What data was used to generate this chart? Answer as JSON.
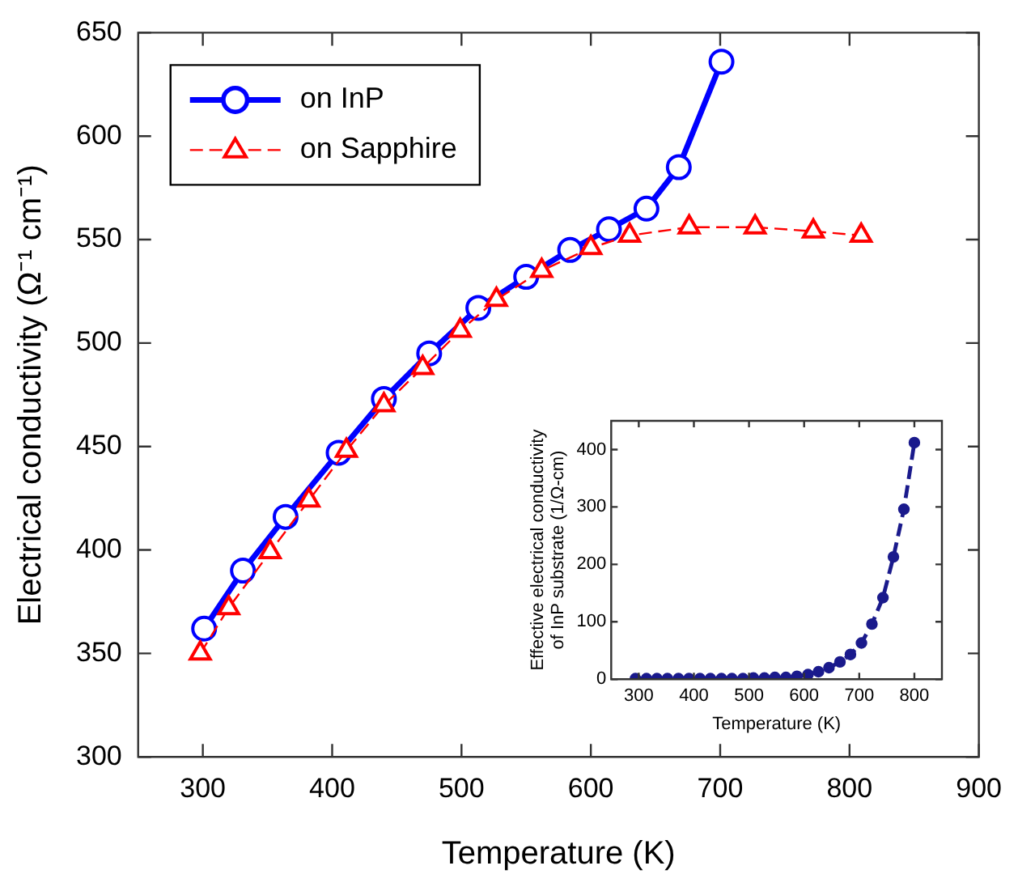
{
  "chart_data": [
    {
      "type": "line",
      "xlabel": "Temperature (K)",
      "ylabel": "Electrical conductivity (Ω⁻¹ cm⁻¹)",
      "xlim": [
        250,
        900
      ],
      "xticks": [
        300,
        400,
        500,
        600,
        700,
        800,
        900
      ],
      "ylim": [
        300,
        650
      ],
      "yticks": [
        300,
        350,
        400,
        450,
        500,
        550,
        600,
        650
      ],
      "legend": "top left",
      "grid": false,
      "series": [
        {
          "name": "on InP",
          "color": "#0000ff",
          "marker": "circle",
          "line_style": "solid",
          "x": [
            301,
            331,
            364,
            405,
            440,
            475,
            513,
            550,
            584,
            614,
            643,
            668,
            701
          ],
          "values": [
            362,
            390,
            416,
            447,
            473,
            495,
            517,
            532,
            545,
            555,
            565,
            585,
            636
          ]
        },
        {
          "name": "on Sapphire",
          "color": "#ff0000",
          "marker": "triangle",
          "line_style": "dashed",
          "x": [
            298,
            320,
            352,
            382,
            411,
            440,
            470,
            499,
            527,
            562,
            600,
            630,
            676,
            727,
            772,
            809
          ],
          "values": [
            350,
            372,
            399,
            424,
            448,
            470,
            488,
            506,
            521,
            535,
            546,
            552,
            556,
            556,
            554,
            552
          ]
        }
      ]
    },
    {
      "type": "line",
      "xlabel": "Temperature (K)",
      "ylabel": "Effective electrical conductivity\nof InP substrate (1/Ω-cm)",
      "xlim": [
        250,
        850
      ],
      "xticks": [
        300,
        400,
        500,
        600,
        700,
        800
      ],
      "ylim": [
        0,
        450
      ],
      "yticks": [
        0,
        100,
        200,
        300,
        400
      ],
      "legend": false,
      "grid": false,
      "series": [
        {
          "color": "#1a1a8c",
          "marker": "circle",
          "line_style": "dashed",
          "x": [
            294,
            314,
            333,
            352,
            372,
            391,
            411,
            430,
            450,
            469,
            489,
            508,
            528,
            547,
            567,
            587,
            607,
            626,
            645,
            665,
            684,
            704,
            723,
            743,
            762,
            781,
            800
          ],
          "values": [
            1,
            1,
            1,
            1,
            1,
            1,
            1,
            1,
            1,
            1,
            1,
            2,
            2,
            3,
            3,
            5,
            8,
            13,
            20,
            30,
            43,
            63,
            96,
            142,
            213,
            296,
            412
          ]
        }
      ]
    }
  ]
}
